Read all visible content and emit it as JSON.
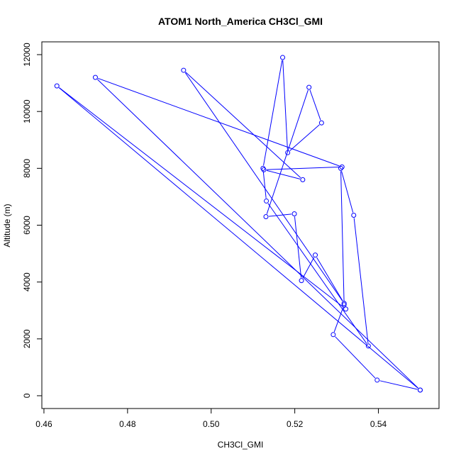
{
  "chart_data": {
    "type": "line",
    "title": "ATOM1 North_America CH3Cl_GMI",
    "xlabel": "CH3Cl_GMI",
    "ylabel": "Altitude (m)",
    "xlim": [
      0.4595,
      0.5545
    ],
    "ylim": [
      -450,
      12450
    ],
    "xticks": [
      0.46,
      0.48,
      0.5,
      0.52,
      0.54
    ],
    "xtick_labels": [
      "0.46",
      "0.48",
      "0.50",
      "0.52",
      "0.54"
    ],
    "yticks": [
      0,
      2000,
      4000,
      6000,
      8000,
      10000,
      12000
    ],
    "ytick_labels": [
      "0",
      "2000",
      "4000",
      "6000",
      "8000",
      "10000",
      "12000"
    ],
    "grid": false,
    "markers": "open-circle",
    "series": [
      {
        "color": "#0000ff",
        "x": [
          0.55,
          0.5397,
          0.5292,
          0.5318,
          0.531,
          0.5341,
          0.5376,
          0.5132,
          0.5124,
          0.5171,
          0.5183,
          0.5264,
          0.5234,
          0.5131,
          0.5199,
          0.5216,
          0.5249,
          0.5318,
          0.4934,
          0.5219,
          0.5126,
          0.5313,
          0.4723,
          0.55,
          0.4631,
          0.5322
        ],
        "y": [
          200,
          550,
          2150,
          3200,
          8000,
          6350,
          1750,
          6850,
          8000,
          11900,
          8550,
          9600,
          10850,
          6300,
          6400,
          4050,
          4950,
          3250,
          11450,
          7600,
          7950,
          8050,
          11200,
          200,
          10900,
          3050
        ]
      }
    ]
  }
}
